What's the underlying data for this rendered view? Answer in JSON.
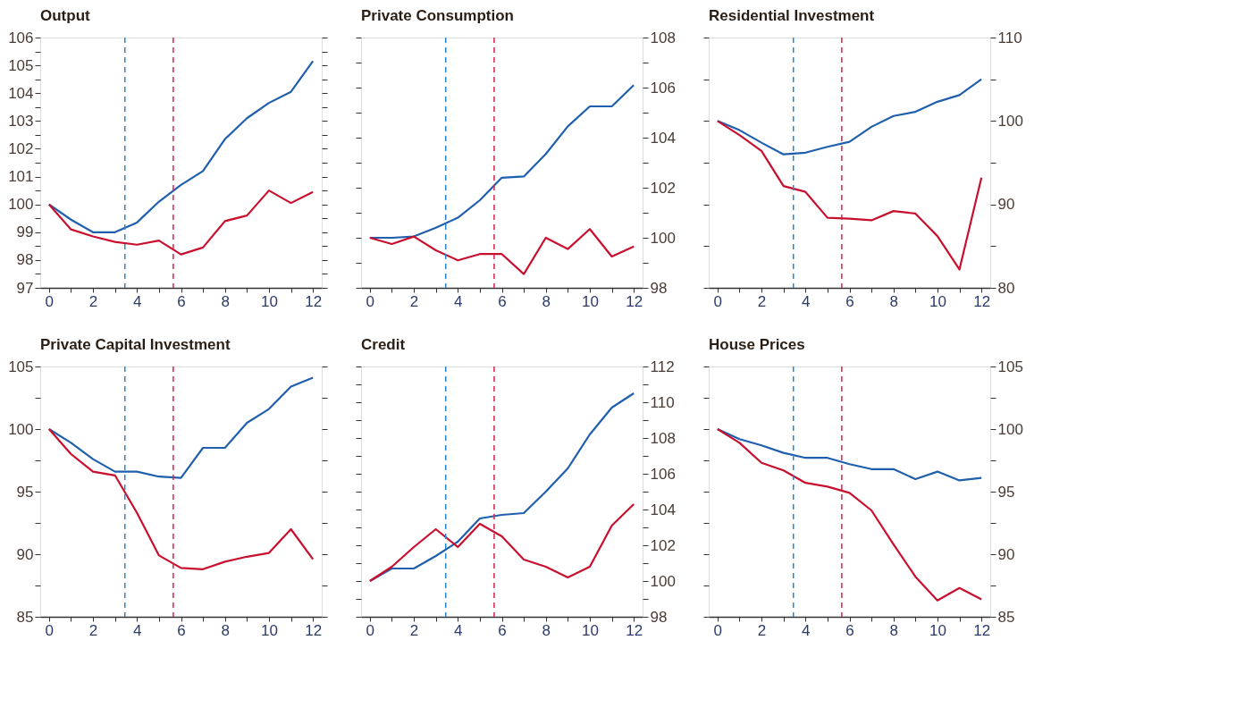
{
  "chart_data": [
    {
      "type": "line",
      "title": "Output",
      "x": [
        0,
        1,
        2,
        3,
        4,
        5,
        6,
        7,
        8,
        9,
        10,
        11,
        12
      ],
      "xlim": [
        -0.4,
        12.4
      ],
      "xticks": [
        0,
        {
          "value": 1,
          "label": null
        },
        2,
        {
          "value": 3,
          "label": null
        },
        4,
        {
          "value": 5,
          "label": null
        },
        6,
        {
          "value": 7,
          "label": null
        },
        8,
        {
          "value": 9,
          "label": null
        },
        10,
        {
          "value": 11,
          "label": null
        },
        12
      ],
      "ylim": [
        97,
        106
      ],
      "yticks": [
        97,
        {
          "value": 97.5,
          "label": null
        },
        98,
        {
          "value": 98.5,
          "label": null
        },
        99,
        {
          "value": 99.5,
          "label": null
        },
        100,
        {
          "value": 100.5,
          "label": null
        },
        101,
        {
          "value": 101.5,
          "label": null
        },
        102,
        {
          "value": 102.5,
          "label": null
        },
        103,
        {
          "value": 103.5,
          "label": null
        },
        104,
        {
          "value": 104.5,
          "label": null
        },
        105,
        {
          "value": 105.5,
          "label": null
        },
        106
      ],
      "series": [
        {
          "color": "#1f5fad",
          "values": [
            100,
            99.45,
            99.0,
            99.0,
            99.35,
            100.1,
            100.7,
            101.2,
            102.35,
            103.1,
            103.65,
            104.05,
            105.15
          ]
        },
        {
          "color": "#c8102e",
          "values": [
            100,
            99.1,
            98.85,
            98.65,
            98.55,
            98.7,
            98.2,
            98.45,
            99.4,
            99.6,
            100.5,
            100.05,
            100.45
          ]
        }
      ],
      "ref_lines": [
        {
          "axis": "x",
          "value": 3.45,
          "color": "#2a86d1",
          "line_style": "dashed"
        },
        {
          "axis": "x",
          "value": 5.65,
          "color": "#d6254a",
          "line_style": "dashed"
        }
      ]
    },
    {
      "type": "line",
      "title": "Private Consumption",
      "x": [
        0,
        1,
        2,
        3,
        4,
        5,
        6,
        7,
        8,
        9,
        10,
        11,
        12
      ],
      "xlim": [
        -0.4,
        12.4
      ],
      "xticks": [
        0,
        {
          "value": 1,
          "label": null
        },
        2,
        {
          "value": 3,
          "label": null
        },
        4,
        {
          "value": 5,
          "label": null
        },
        6,
        {
          "value": 7,
          "label": null
        },
        8,
        {
          "value": 9,
          "label": null
        },
        10,
        {
          "value": 11,
          "label": null
        },
        12
      ],
      "y2lim": [
        98,
        108
      ],
      "y2ticks": [
        98,
        {
          "value": 99,
          "label": null
        },
        100,
        {
          "value": 101,
          "label": null
        },
        102,
        {
          "value": 103,
          "label": null
        },
        104,
        {
          "value": 105,
          "label": null
        },
        106,
        {
          "value": 107,
          "label": null
        },
        108
      ],
      "series": [
        {
          "color": "#1f5fad",
          "axis": "y2",
          "values": [
            100,
            100.0,
            100.05,
            100.4,
            100.8,
            101.5,
            102.4,
            102.45,
            103.35,
            104.45,
            105.25,
            105.25,
            106.1
          ]
        },
        {
          "color": "#c8102e",
          "axis": "y2",
          "values": [
            100,
            99.75,
            100.05,
            99.5,
            99.1,
            99.35,
            99.35,
            98.55,
            100.0,
            99.55,
            100.35,
            99.25,
            99.65
          ]
        }
      ],
      "ref_lines": [
        {
          "axis": "x",
          "value": 3.45,
          "color": "#2a86d1",
          "line_style": "dashed"
        },
        {
          "axis": "x",
          "value": 5.65,
          "color": "#d6254a",
          "line_style": "dashed"
        }
      ]
    },
    {
      "type": "line",
      "title": "Residential Investment",
      "x": [
        0,
        1,
        2,
        3,
        4,
        5,
        6,
        7,
        8,
        9,
        10,
        11,
        12
      ],
      "xlim": [
        -0.4,
        12.4
      ],
      "xticks": [
        0,
        {
          "value": 1,
          "label": null
        },
        2,
        {
          "value": 3,
          "label": null
        },
        4,
        {
          "value": 5,
          "label": null
        },
        6,
        {
          "value": 7,
          "label": null
        },
        8,
        {
          "value": 9,
          "label": null
        },
        10,
        {
          "value": 11,
          "label": null
        },
        12
      ],
      "y2lim": [
        80,
        110
      ],
      "y2ticks": [
        80,
        {
          "value": 85,
          "label": null
        },
        90,
        {
          "value": 95,
          "label": null
        },
        100,
        {
          "value": 105,
          "label": null
        },
        110
      ],
      "series": [
        {
          "color": "#1f5fad",
          "axis": "y2",
          "values": [
            100,
            98.9,
            97.4,
            96.0,
            96.2,
            96.9,
            97.5,
            99.3,
            100.6,
            101.1,
            102.3,
            103.1,
            105.0
          ]
        },
        {
          "color": "#c8102e",
          "axis": "y2",
          "values": [
            100,
            98.3,
            96.4,
            92.2,
            91.5,
            88.4,
            88.3,
            88.1,
            89.2,
            88.9,
            86.2,
            82.2,
            93.2
          ]
        }
      ],
      "ref_lines": [
        {
          "axis": "x",
          "value": 3.45,
          "color": "#2a86d1",
          "line_style": "dashed"
        },
        {
          "axis": "x",
          "value": 5.65,
          "color": "#d6254a",
          "line_style": "dashed"
        }
      ]
    },
    {
      "type": "line",
      "title": "Private Capital Investment",
      "x": [
        0,
        1,
        2,
        3,
        4,
        5,
        6,
        7,
        8,
        9,
        10,
        11,
        12
      ],
      "xlim": [
        -0.4,
        12.4
      ],
      "xticks": [
        0,
        {
          "value": 1,
          "label": null
        },
        2,
        {
          "value": 3,
          "label": null
        },
        4,
        {
          "value": 5,
          "label": null
        },
        6,
        {
          "value": 7,
          "label": null
        },
        8,
        {
          "value": 9,
          "label": null
        },
        10,
        {
          "value": 11,
          "label": null
        },
        12
      ],
      "ylim": [
        85,
        105
      ],
      "yticks": [
        85,
        {
          "value": 87.5,
          "label": null
        },
        90,
        {
          "value": 92.5,
          "label": null
        },
        95,
        {
          "value": 97.5,
          "label": null
        },
        100,
        {
          "value": 102.5,
          "label": null
        },
        105
      ],
      "series": [
        {
          "color": "#1f5fad",
          "values": [
            100,
            98.9,
            97.6,
            96.6,
            96.6,
            96.2,
            96.1,
            98.5,
            98.5,
            100.5,
            101.6,
            103.4,
            104.1
          ]
        },
        {
          "color": "#c8102e",
          "values": [
            100,
            98.0,
            96.6,
            96.3,
            93.3,
            89.9,
            88.9,
            88.8,
            89.4,
            89.8,
            90.1,
            92.0,
            89.6
          ]
        }
      ],
      "ref_lines": [
        {
          "axis": "x",
          "value": 3.45,
          "color": "#2a86d1",
          "line_style": "dashed"
        },
        {
          "axis": "x",
          "value": 5.65,
          "color": "#d6254a",
          "line_style": "dashed"
        }
      ]
    },
    {
      "type": "line",
      "title": "Credit",
      "x": [
        0,
        1,
        2,
        3,
        4,
        5,
        6,
        7,
        8,
        9,
        10,
        11,
        12
      ],
      "xlim": [
        -0.4,
        12.4
      ],
      "xticks": [
        0,
        {
          "value": 1,
          "label": null
        },
        2,
        {
          "value": 3,
          "label": null
        },
        4,
        {
          "value": 5,
          "label": null
        },
        6,
        {
          "value": 7,
          "label": null
        },
        8,
        {
          "value": 9,
          "label": null
        },
        10,
        {
          "value": 11,
          "label": null
        },
        12
      ],
      "y2lim": [
        98,
        112
      ],
      "y2ticks": [
        98,
        {
          "value": 99,
          "label": null
        },
        100,
        {
          "value": 101,
          "label": null
        },
        102,
        {
          "value": 103,
          "label": null
        },
        104,
        {
          "value": 105,
          "label": null
        },
        106,
        {
          "value": 107,
          "label": null
        },
        108,
        {
          "value": 109,
          "label": null
        },
        110,
        {
          "value": 111,
          "label": null
        },
        112
      ],
      "series": [
        {
          "color": "#1f5fad",
          "axis": "y2",
          "values": [
            100,
            100.7,
            100.7,
            101.4,
            102.2,
            103.5,
            103.7,
            103.8,
            105.0,
            106.3,
            108.2,
            109.7,
            110.5
          ]
        },
        {
          "color": "#c8102e",
          "axis": "y2",
          "values": [
            100,
            100.8,
            101.9,
            102.9,
            101.9,
            103.2,
            102.5,
            101.2,
            100.8,
            100.2,
            100.8,
            103.1,
            104.3
          ]
        }
      ],
      "ref_lines": [
        {
          "axis": "x",
          "value": 3.45,
          "color": "#2a86d1",
          "line_style": "dashed"
        },
        {
          "axis": "x",
          "value": 5.65,
          "color": "#d6254a",
          "line_style": "dashed"
        }
      ]
    },
    {
      "type": "line",
      "title": "House Prices",
      "x": [
        0,
        1,
        2,
        3,
        4,
        5,
        6,
        7,
        8,
        9,
        10,
        11,
        12
      ],
      "xlim": [
        -0.4,
        12.4
      ],
      "xticks": [
        0,
        {
          "value": 1,
          "label": null
        },
        2,
        {
          "value": 3,
          "label": null
        },
        4,
        {
          "value": 5,
          "label": null
        },
        6,
        {
          "value": 7,
          "label": null
        },
        8,
        {
          "value": 9,
          "label": null
        },
        10,
        {
          "value": 11,
          "label": null
        },
        12
      ],
      "y2lim": [
        85,
        105
      ],
      "y2ticks": [
        85,
        {
          "value": 87.5,
          "label": null
        },
        90,
        {
          "value": 92.5,
          "label": null
        },
        95,
        {
          "value": 97.5,
          "label": null
        },
        100,
        {
          "value": 102.5,
          "label": null
        },
        105
      ],
      "series": [
        {
          "color": "#1f5fad",
          "axis": "y2",
          "values": [
            100,
            99.2,
            98.7,
            98.1,
            97.7,
            97.7,
            97.2,
            96.8,
            96.8,
            96.0,
            96.6,
            95.9,
            96.1
          ]
        },
        {
          "color": "#c8102e",
          "axis": "y2",
          "values": [
            100,
            98.9,
            97.3,
            96.7,
            95.7,
            95.4,
            94.9,
            93.5,
            90.8,
            88.2,
            86.3,
            87.3,
            86.4
          ]
        }
      ],
      "ref_lines": [
        {
          "axis": "x",
          "value": 3.45,
          "color": "#2a86d1",
          "line_style": "dashed"
        },
        {
          "axis": "x",
          "value": 5.65,
          "color": "#d6254a",
          "line_style": "dashed"
        }
      ]
    }
  ]
}
